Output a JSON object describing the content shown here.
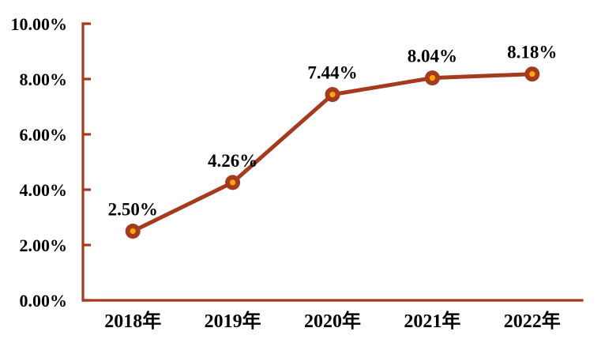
{
  "chart_data": {
    "type": "line",
    "categories": [
      "2018年",
      "2019年",
      "2020年",
      "2021年",
      "2022年"
    ],
    "values": [
      2.5,
      4.26,
      7.44,
      8.04,
      8.18
    ],
    "point_labels": [
      "2.50%",
      "4.26%",
      "7.44%",
      "8.04%",
      "8.18%"
    ],
    "title": "",
    "xlabel": "",
    "ylabel": "",
    "ylim": [
      0,
      10
    ],
    "y_ticks": [
      0,
      2,
      4,
      6,
      8,
      10
    ],
    "y_tick_labels": [
      "0.00%",
      "2.00%",
      "4.00%",
      "6.00%",
      "8.00%",
      "10.00%"
    ],
    "grid": false,
    "legend": "none",
    "colors": {
      "line": "#A43A1E",
      "axis": "#A43A1E",
      "marker_ring": "#A43A1E",
      "marker_center": "#FFA805",
      "label_text": "#000000",
      "background": "#FFFFFF"
    }
  }
}
